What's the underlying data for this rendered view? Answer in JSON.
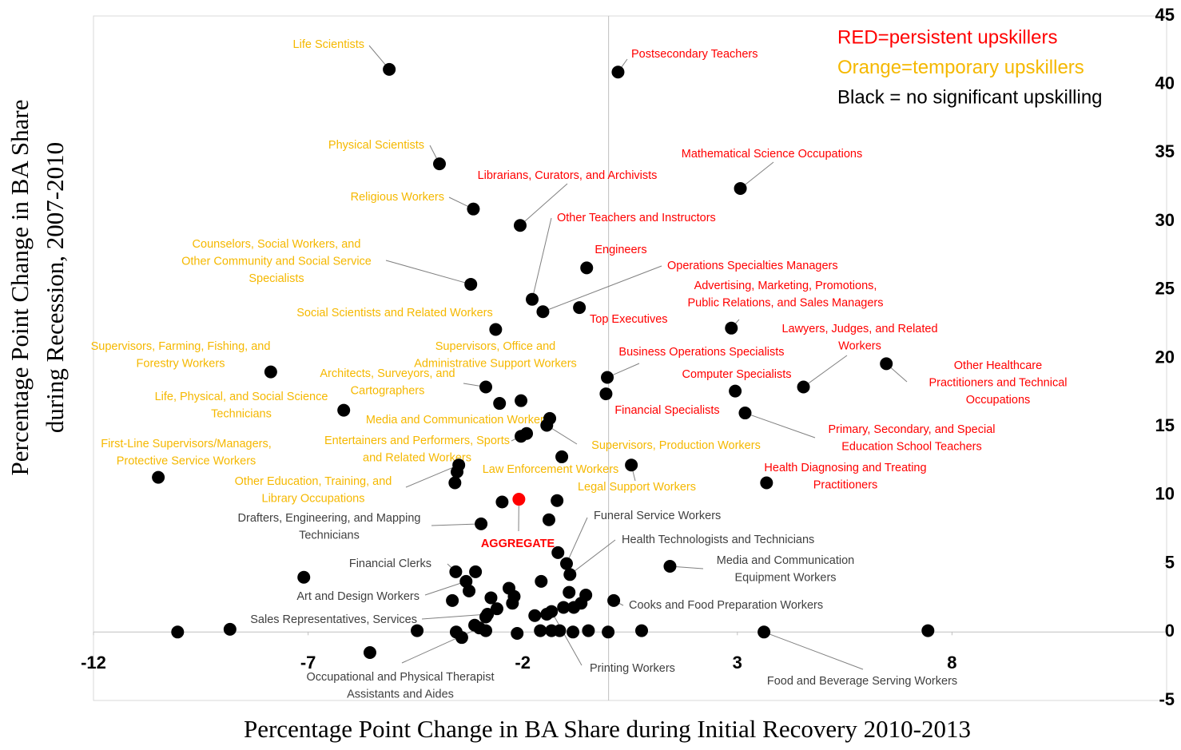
{
  "chart_data": {
    "type": "scatter",
    "xlabel": "Percentage Point Change in BA Share during Initial Recovery 2010-2013",
    "ylabel": [
      "Percentage Point Change in BA Share",
      "during Recession, 2007-2010"
    ],
    "xlim": [
      -12,
      13
    ],
    "ylim": [
      -5,
      45
    ],
    "xticks": [
      -12,
      -7,
      -2,
      3,
      8
    ],
    "yticks": [
      -5,
      0,
      5,
      10,
      15,
      20,
      25,
      30,
      35,
      40,
      45
    ],
    "legend": [
      {
        "text": "RED=persistent upskillers",
        "color": "#ff0000"
      },
      {
        "text": "Orange=temporary upskillers",
        "color": "#f5b800"
      },
      {
        "text": "Black = no significant upskilling",
        "color": "#000000"
      }
    ],
    "series": [
      {
        "color": "#000000",
        "x": [
          -5.11,
          0.22,
          -3.94,
          3.07,
          -2.06,
          -3.15,
          -0.51,
          -1.78,
          -1.53,
          -3.21,
          -0.68,
          2.86,
          -2.63,
          4.54,
          6.47,
          -7.87,
          -0.03,
          2.95,
          -0.06,
          3.18,
          -2.04,
          -2.86,
          -6.17,
          -1.37,
          -1.91,
          -1.44,
          -1.09,
          0.53,
          -10.49,
          -3.49,
          3.68,
          -2.97,
          -0.98,
          -0.9,
          1.43,
          -3.56,
          -3.32,
          -2.82,
          0.12,
          -1.33,
          -3.01,
          3.62,
          -10.04,
          -8.82,
          -7.1,
          -4.46,
          7.44,
          0.77,
          -0.01,
          -0.47,
          -0.83,
          -1.14,
          -1.59,
          -2.13,
          -2.86,
          -3.42,
          -3.55,
          -3.12,
          -3.64,
          -3.25,
          -3.1,
          -2.74,
          -2.6,
          -2.32,
          -2.2,
          -2.24,
          -1.72,
          -1.57,
          -1.44,
          -1.05,
          -0.92,
          -0.81,
          -0.64,
          -0.53,
          -1.33,
          -2.86,
          -2.54,
          -2.04,
          -3.53,
          -3.58,
          -2.48,
          -1.2,
          -1.39,
          -1.18,
          -5.56
        ],
        "y": [
          41.1,
          40.9,
          34.2,
          32.4,
          29.7,
          30.9,
          26.6,
          24.3,
          23.4,
          25.4,
          23.7,
          22.2,
          22.1,
          17.9,
          19.6,
          19.0,
          18.6,
          17.6,
          17.4,
          16.0,
          16.9,
          17.9,
          16.2,
          15.6,
          14.5,
          15.1,
          12.8,
          12.2,
          11.3,
          12.2,
          10.9,
          7.9,
          5.0,
          4.2,
          4.8,
          4.4,
          3.7,
          1.3,
          2.3,
          1.5,
          0.3,
          0.0,
          0.0,
          0.2,
          4.0,
          0.1,
          0.1,
          0.1,
          0.0,
          0.1,
          0.0,
          0.1,
          0.1,
          -0.1,
          0.1,
          -0.4,
          0.0,
          0.5,
          2.3,
          3.0,
          4.4,
          2.5,
          1.7,
          3.2,
          2.6,
          2.1,
          1.2,
          3.7,
          1.3,
          1.8,
          2.9,
          1.8,
          2.1,
          2.7,
          0.1,
          1.1,
          16.7,
          14.3,
          11.7,
          10.9,
          9.5,
          9.6,
          8.2,
          5.8,
          -1.5
        ],
        "labels": [
          "Life Scientists",
          "Postsecondary Teachers",
          "Physical Scientists",
          "Mathematical Science Occupations",
          "Librarians, Curators, and Archivists",
          "Religious Workers",
          "Engineers",
          "Other Teachers and Instructors",
          "Operations Specialties Managers",
          [
            "Counselors, Social Workers, and",
            "Other Community and Social Service",
            "Specialists"
          ],
          "Top Executives",
          [
            "Advertising, Marketing, Promotions,",
            "Public Relations, and Sales Managers"
          ],
          "Social Scientists and Related Workers",
          [
            "Lawyers, Judges, and Related",
            "Workers"
          ],
          [
            "Other Healthcare",
            "Practitioners and Technical",
            "Occupations"
          ],
          [
            "Supervisors, Farming, Fishing, and",
            "Forestry Workers"
          ],
          "Business Operations Specialists",
          "Computer Specialists",
          "Financial Specialists",
          [
            "Primary, Secondary, and Special",
            "Education School Teachers"
          ],
          [
            "Supervisors, Office and",
            "Administrative Support Workers"
          ],
          [
            "Architects, Surveyors, and",
            "Cartographers"
          ],
          [
            "Life, Physical, and Social Science",
            "Technicians"
          ],
          "Media and Communication Workers",
          [
            "Entertainers and Performers, Sports",
            "and Related Workers"
          ],
          "Supervisors, Production Workers",
          "Law Enforcement Workers",
          "Legal Support Workers",
          [
            "First-Line Supervisors/Managers,",
            "Protective Service Workers"
          ],
          [
            "Other Education, Training, and",
            "Library Occupations"
          ],
          [
            "Health Diagnosing and Treating",
            "Practitioners"
          ],
          [
            "Drafters, Engineering, and Mapping",
            "Technicians"
          ],
          "Funeral Service Workers",
          "Health Technologists and Technicians",
          [
            "Media and Communication",
            "Equipment Workers"
          ],
          "Financial Clerks",
          "Art and Design Workers",
          "Sales Representatives, Services",
          "Cooks and Food Preparation Workers",
          "Printing Workers",
          [
            "Occupational and Physical Therapist",
            "Assistants and Aides"
          ],
          "Food and Beverage Serving Workers",
          null,
          null,
          null,
          null,
          null,
          null,
          null,
          null,
          null,
          null,
          null,
          null,
          null,
          null,
          null,
          null,
          null,
          null,
          null,
          null,
          null,
          null,
          null,
          null,
          null,
          null,
          null,
          null,
          null,
          null,
          null,
          null,
          null,
          null,
          null,
          null,
          null,
          null,
          null,
          null,
          null,
          null,
          null
        ],
        "label_colors": [
          "#f5b800",
          "#ff0000",
          "#f5b800",
          "#ff0000",
          "#ff0000",
          "#f5b800",
          "#ff0000",
          "#ff0000",
          "#ff0000",
          "#f5b800",
          "#ff0000",
          "#ff0000",
          "#f5b800",
          "#ff0000",
          "#ff0000",
          "#f5b800",
          "#ff0000",
          "#ff0000",
          "#ff0000",
          "#ff0000",
          "#f5b800",
          "#f5b800",
          "#f5b800",
          "#f5b800",
          "#f5b800",
          "#f5b800",
          "#f5b800",
          "#f5b800",
          "#f5b800",
          "#f5b800",
          "#ff0000",
          "#404040",
          "#404040",
          "#404040",
          "#404040",
          "#404040",
          "#404040",
          "#404040",
          "#404040",
          "#404040",
          "#404040",
          "#404040",
          null,
          null,
          null,
          null,
          null,
          null,
          null,
          null,
          null,
          null,
          null,
          null,
          null,
          null,
          null,
          null,
          null,
          null,
          null,
          null,
          null,
          null,
          null,
          null,
          null,
          null,
          null,
          null,
          null,
          null,
          null,
          null,
          null,
          null,
          null,
          null,
          null,
          null,
          null,
          null,
          null,
          null,
          null
        ]
      },
      {
        "color": "#ff0000",
        "x": [
          -2.09
        ],
        "y": [
          9.7
        ],
        "labels": [
          "AGGREGATE"
        ],
        "label_colors": [
          "#ff0000"
        ]
      }
    ]
  }
}
